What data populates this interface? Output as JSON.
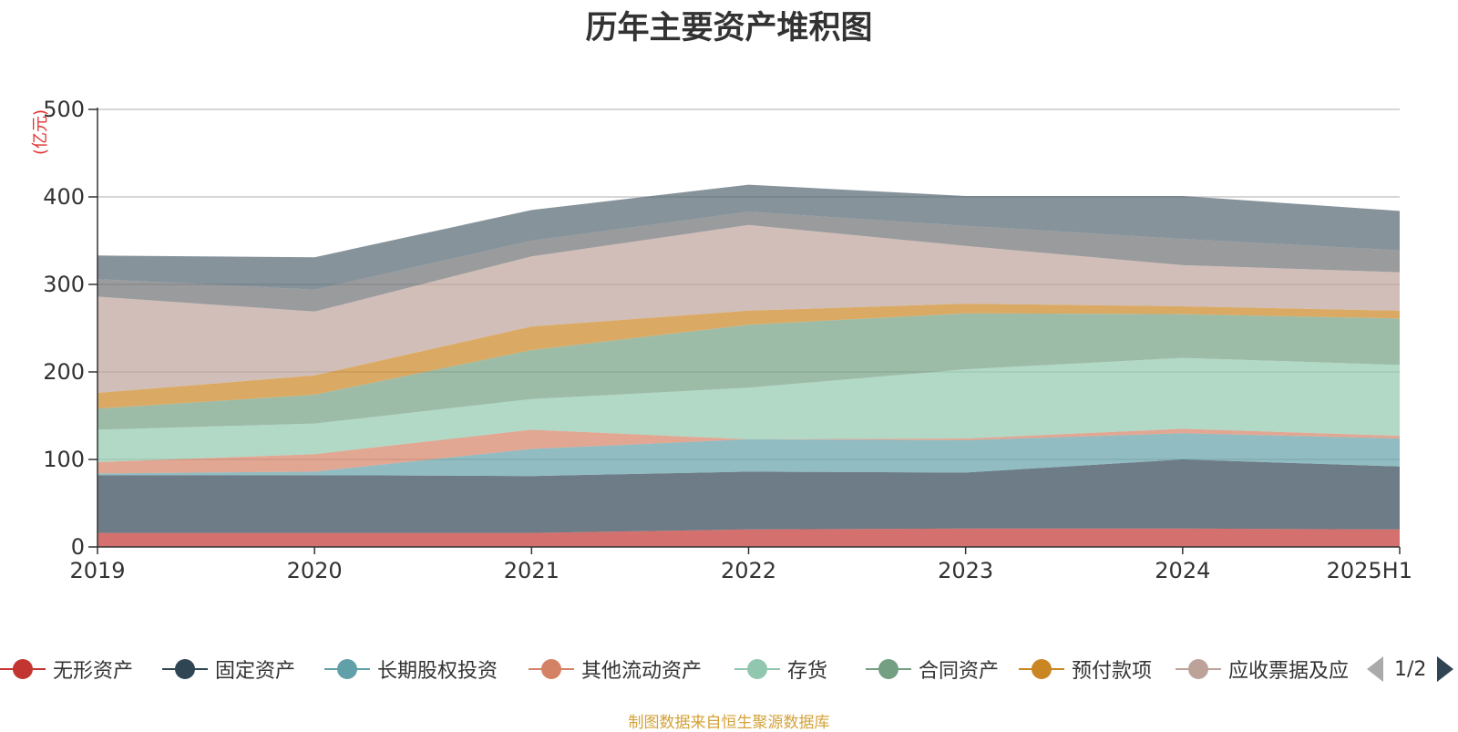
{
  "title": "历年主要资产堆积图",
  "source_note": "制图数据来自恒生聚源数据库",
  "legend_pager": {
    "text": "1/2",
    "prev_icon": "triangle-left-icon",
    "next_icon": "triangle-right-icon"
  },
  "chart_data": {
    "type": "area",
    "stacked": true,
    "title": "历年主要资产堆积图",
    "ylabel": "(亿元)",
    "xlabel": "",
    "x": [
      "2019",
      "2020",
      "2021",
      "2022",
      "2023",
      "2024",
      "2025H1"
    ],
    "ylim": [
      0,
      500
    ],
    "yticks": [
      0,
      100,
      200,
      300,
      400,
      500
    ],
    "grid": true,
    "legend_position": "bottom",
    "series": [
      {
        "name": "无形资产",
        "color": "#c23531",
        "values": [
          16,
          16,
          16,
          20,
          21,
          21,
          20
        ]
      },
      {
        "name": "固定资产",
        "color": "#2f4554",
        "values": [
          66,
          66,
          65,
          66,
          64,
          79,
          72
        ]
      },
      {
        "name": "长期股权投资",
        "color": "#61a0a8",
        "values": [
          2,
          4,
          31,
          37,
          37,
          30,
          32
        ]
      },
      {
        "name": "其他流动资产",
        "color": "#d48265",
        "values": [
          13,
          20,
          22,
          0,
          2,
          5,
          3
        ]
      },
      {
        "name": "存货",
        "color": "#91c7ae",
        "values": [
          37,
          35,
          35,
          59,
          79,
          81,
          81
        ]
      },
      {
        "name": "合同资产",
        "color": "#749f83",
        "values": [
          24,
          33,
          56,
          72,
          64,
          50,
          53
        ]
      },
      {
        "name": "预付款项",
        "color": "#ca8622",
        "values": [
          18,
          22,
          27,
          16,
          11,
          9,
          9
        ]
      },
      {
        "name": "应收票据及应收账款",
        "color": "#bda29a",
        "values": [
          110,
          73,
          80,
          98,
          66,
          47,
          44
        ]
      },
      {
        "name": "",
        "color": "#6e7074",
        "values": [
          20,
          25,
          18,
          15,
          23,
          30,
          25
        ]
      },
      {
        "name": "",
        "color": "#546570",
        "values": [
          27,
          37,
          35,
          31,
          34,
          49,
          45
        ]
      }
    ]
  }
}
